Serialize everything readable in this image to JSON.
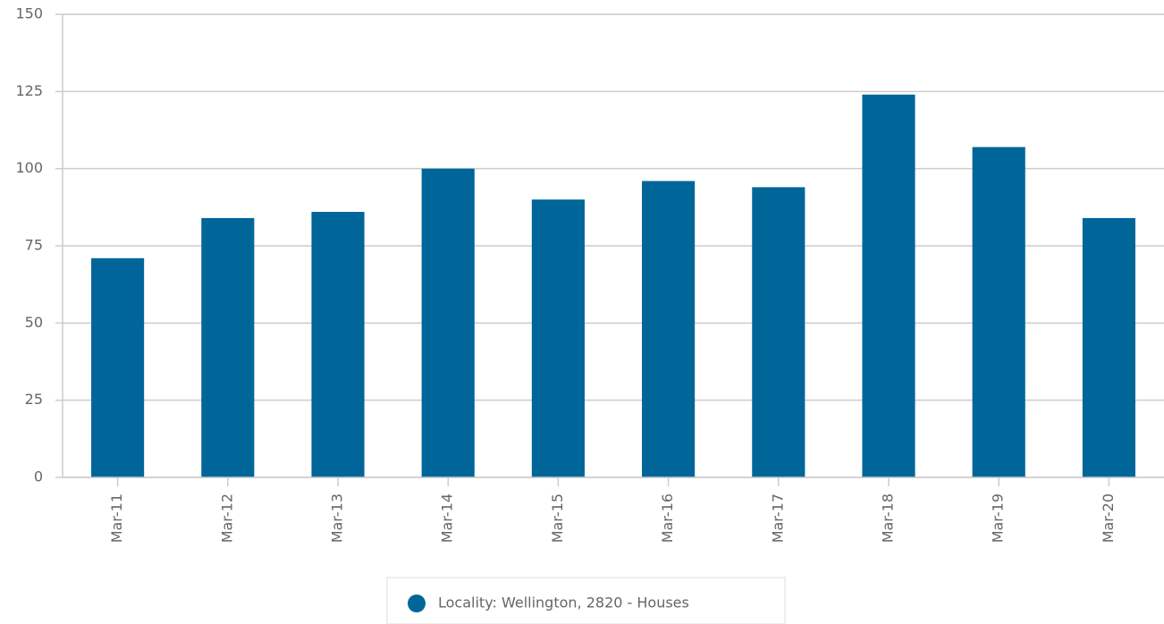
{
  "chart_data": {
    "type": "bar",
    "categories": [
      "Mar-11",
      "Mar-12",
      "Mar-13",
      "Mar-14",
      "Mar-15",
      "Mar-16",
      "Mar-17",
      "Mar-18",
      "Mar-19",
      "Mar-20"
    ],
    "series": [
      {
        "name": "Locality: Wellington, 2820 - Houses",
        "color": "#006699",
        "values": [
          71,
          84,
          86,
          100,
          90,
          96,
          94,
          124,
          107,
          84
        ]
      }
    ],
    "ylim": [
      0,
      150
    ],
    "yticks": [
      0,
      25,
      50,
      75,
      100,
      125,
      150
    ],
    "grid": true,
    "legend": "bottom"
  }
}
